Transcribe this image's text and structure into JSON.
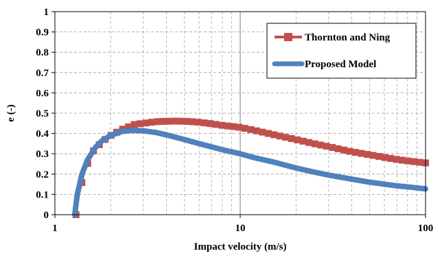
{
  "chart_data": {
    "type": "line",
    "title": "",
    "xlabel": "Impact velocity (m/s)",
    "ylabel": "e (-)",
    "xscale": "log",
    "xlim": [
      1,
      100
    ],
    "ylim": [
      0,
      1
    ],
    "x_ticks": [
      1,
      10,
      100
    ],
    "x_tick_labels": [
      "1",
      "10",
      "100"
    ],
    "y_ticks": [
      0,
      0.1,
      0.2,
      0.3,
      0.4,
      0.5,
      0.6,
      0.7,
      0.8,
      0.9,
      1
    ],
    "y_tick_labels": [
      "0",
      "0.1",
      "0.2",
      "0.3",
      "0.4",
      "0.5",
      "0.6",
      "0.7",
      "0.8",
      "0.9",
      "1"
    ],
    "grid": "dashed, vertical minor and horizontal major",
    "legend_position": "top-right",
    "series": [
      {
        "name": "Thornton and Ning",
        "color": "#c0504d",
        "marker": "square",
        "x": [
          1.3,
          1.35,
          1.45,
          1.6,
          1.8,
          2.0,
          2.3,
          2.7,
          3.0,
          3.5,
          4.0,
          4.5,
          5.0,
          5.5,
          6.0,
          7.0,
          8.0,
          10.0,
          12.0,
          15.0,
          20.0,
          25.0,
          30.0,
          40.0,
          50.0,
          60.0,
          70.0,
          80.0,
          100.0
        ],
        "values": [
          0.0,
          0.1,
          0.22,
          0.31,
          0.36,
          0.39,
          0.42,
          0.445,
          0.45,
          0.458,
          0.46,
          0.461,
          0.46,
          0.458,
          0.455,
          0.448,
          0.44,
          0.43,
          0.415,
          0.395,
          0.37,
          0.35,
          0.335,
          0.31,
          0.295,
          0.282,
          0.272,
          0.265,
          0.255
        ]
      },
      {
        "name": "Proposed Model",
        "color": "#4f81bd",
        "marker": "none",
        "x": [
          1.28,
          1.32,
          1.4,
          1.5,
          1.65,
          1.8,
          2.0,
          2.3,
          2.6,
          3.0,
          3.5,
          4.0,
          5.0,
          6.0,
          8.0,
          10.0,
          12.0,
          15.0,
          20.0,
          25.0,
          30.0,
          40.0,
          50.0,
          60.0,
          70.0,
          80.0,
          100.0
        ],
        "values": [
          0.0,
          0.1,
          0.2,
          0.27,
          0.33,
          0.365,
          0.39,
          0.41,
          0.415,
          0.413,
          0.405,
          0.393,
          0.37,
          0.35,
          0.32,
          0.3,
          0.28,
          0.26,
          0.23,
          0.21,
          0.195,
          0.175,
          0.16,
          0.15,
          0.142,
          0.137,
          0.127
        ]
      }
    ]
  }
}
